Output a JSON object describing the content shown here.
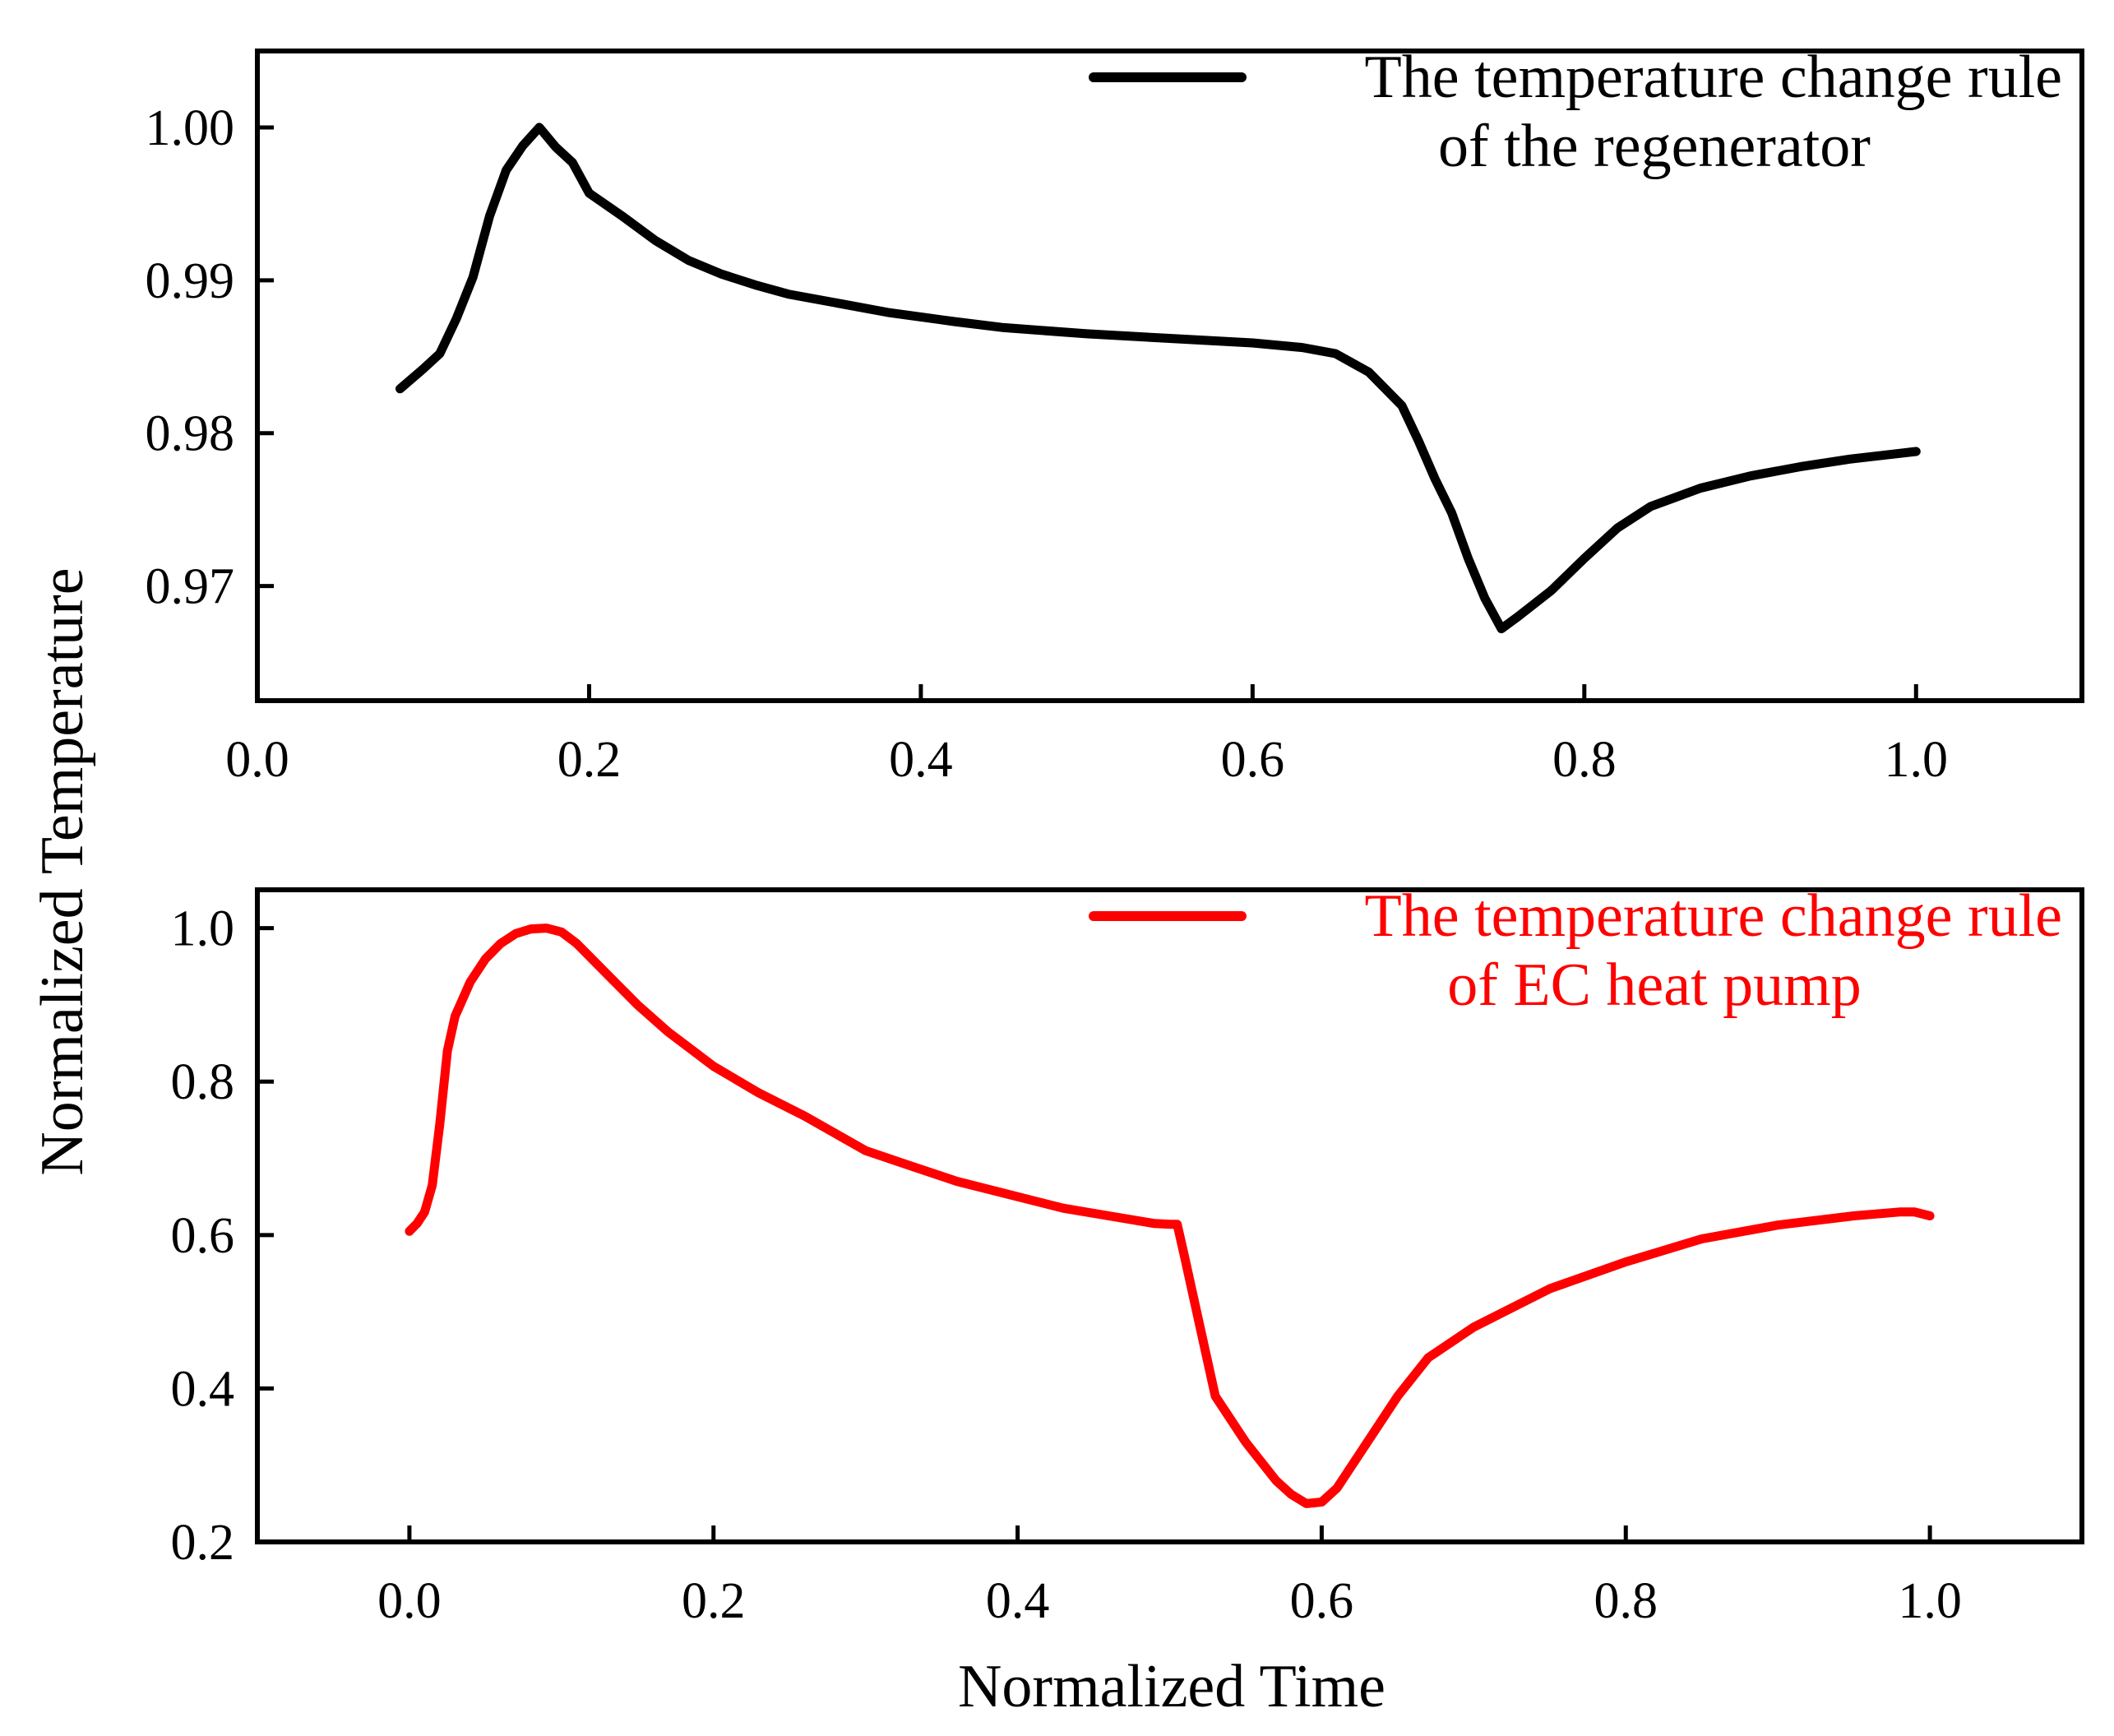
{
  "figure": {
    "ylabel": "Normalized Temperature",
    "xlabel": "Normalized Time"
  },
  "chart_data": [
    {
      "type": "line",
      "title": "",
      "xlabel": "",
      "ylabel": "Normalized Temperature",
      "xlim": [
        0.0,
        1.1
      ],
      "ylim": [
        0.9625,
        1.005
      ],
      "xticks": [
        0.0,
        0.2,
        0.4,
        0.6,
        0.8,
        1.0
      ],
      "xtick_labels": [
        "0.0",
        "0.2",
        "0.4",
        "0.6",
        "0.8",
        "1.0"
      ],
      "yticks": [
        0.97,
        0.98,
        0.99,
        1.0
      ],
      "ytick_labels": [
        "0.97",
        "0.98",
        "0.99",
        "1.00"
      ],
      "grid": false,
      "legend_position": "top-right",
      "series": [
        {
          "name": "The temperature change rule of the regenerator",
          "legend_lines": [
            "The temperature change rule",
            "of the regenerator"
          ],
          "color": "#000000",
          "x": [
            0.086,
            0.1,
            0.11,
            0.12,
            0.13,
            0.14,
            0.15,
            0.16,
            0.17,
            0.18,
            0.19,
            0.2,
            0.22,
            0.24,
            0.26,
            0.28,
            0.3,
            0.32,
            0.35,
            0.38,
            0.42,
            0.45,
            0.5,
            0.55,
            0.6,
            0.63,
            0.65,
            0.67,
            0.69,
            0.7,
            0.71,
            0.72,
            0.73,
            0.74,
            0.75,
            0.76,
            0.78,
            0.8,
            0.82,
            0.84,
            0.87,
            0.9,
            0.93,
            0.96,
            1.0
          ],
          "y": [
            0.9829,
            0.9842,
            0.9852,
            0.9875,
            0.9902,
            0.9942,
            0.9972,
            0.9988,
            1.0,
            0.9987,
            0.9977,
            0.9957,
            0.9942,
            0.9926,
            0.9913,
            0.9904,
            0.9897,
            0.9891,
            0.9885,
            0.9879,
            0.9873,
            0.9869,
            0.9865,
            0.9862,
            0.9859,
            0.9856,
            0.9852,
            0.984,
            0.9818,
            0.9795,
            0.977,
            0.9748,
            0.9718,
            0.9692,
            0.9672,
            0.968,
            0.9697,
            0.9718,
            0.9738,
            0.9752,
            0.9764,
            0.9772,
            0.9778,
            0.9783,
            0.9788
          ]
        }
      ]
    },
    {
      "type": "line",
      "title": "",
      "xlabel": "Normalized Time",
      "ylabel": "Normalized Temperature",
      "xlim": [
        -0.1,
        1.1
      ],
      "ylim": [
        0.2,
        1.05
      ],
      "xticks": [
        0.0,
        0.2,
        0.4,
        0.6,
        0.8,
        1.0
      ],
      "xtick_labels": [
        "0.0",
        "0.2",
        "0.4",
        "0.6",
        "0.8",
        "1.0"
      ],
      "yticks": [
        0.2,
        0.4,
        0.6,
        0.8,
        1.0
      ],
      "ytick_labels": [
        "0.2",
        "0.4",
        "0.6",
        "0.8",
        "1.0"
      ],
      "grid": false,
      "legend_position": "top-right",
      "series": [
        {
          "name": "The temperature change rule of EC heat pump",
          "legend_lines": [
            "The temperature change rule",
            "of EC heat pump"
          ],
          "color": "#ff0000",
          "x": [
            0.0,
            0.005,
            0.01,
            0.015,
            0.02,
            0.025,
            0.03,
            0.04,
            0.05,
            0.06,
            0.07,
            0.08,
            0.09,
            0.1,
            0.11,
            0.13,
            0.15,
            0.17,
            0.2,
            0.23,
            0.26,
            0.3,
            0.33,
            0.36,
            0.4,
            0.43,
            0.46,
            0.49,
            0.5,
            0.505,
            0.51,
            0.52,
            0.53,
            0.55,
            0.57,
            0.58,
            0.59,
            0.6,
            0.61,
            0.63,
            0.65,
            0.67,
            0.7,
            0.75,
            0.8,
            0.85,
            0.9,
            0.95,
            0.98,
            0.99,
            1.0
          ],
          "y": [
            0.605,
            0.615,
            0.63,
            0.665,
            0.745,
            0.84,
            0.885,
            0.93,
            0.96,
            0.98,
            0.993,
            0.999,
            1.0,
            0.995,
            0.98,
            0.94,
            0.9,
            0.865,
            0.82,
            0.785,
            0.755,
            0.71,
            0.69,
            0.67,
            0.65,
            0.635,
            0.625,
            0.615,
            0.614,
            0.614,
            0.57,
            0.48,
            0.39,
            0.33,
            0.28,
            0.262,
            0.25,
            0.252,
            0.27,
            0.33,
            0.39,
            0.44,
            0.48,
            0.53,
            0.565,
            0.595,
            0.613,
            0.625,
            0.63,
            0.63,
            0.625
          ]
        }
      ]
    }
  ]
}
